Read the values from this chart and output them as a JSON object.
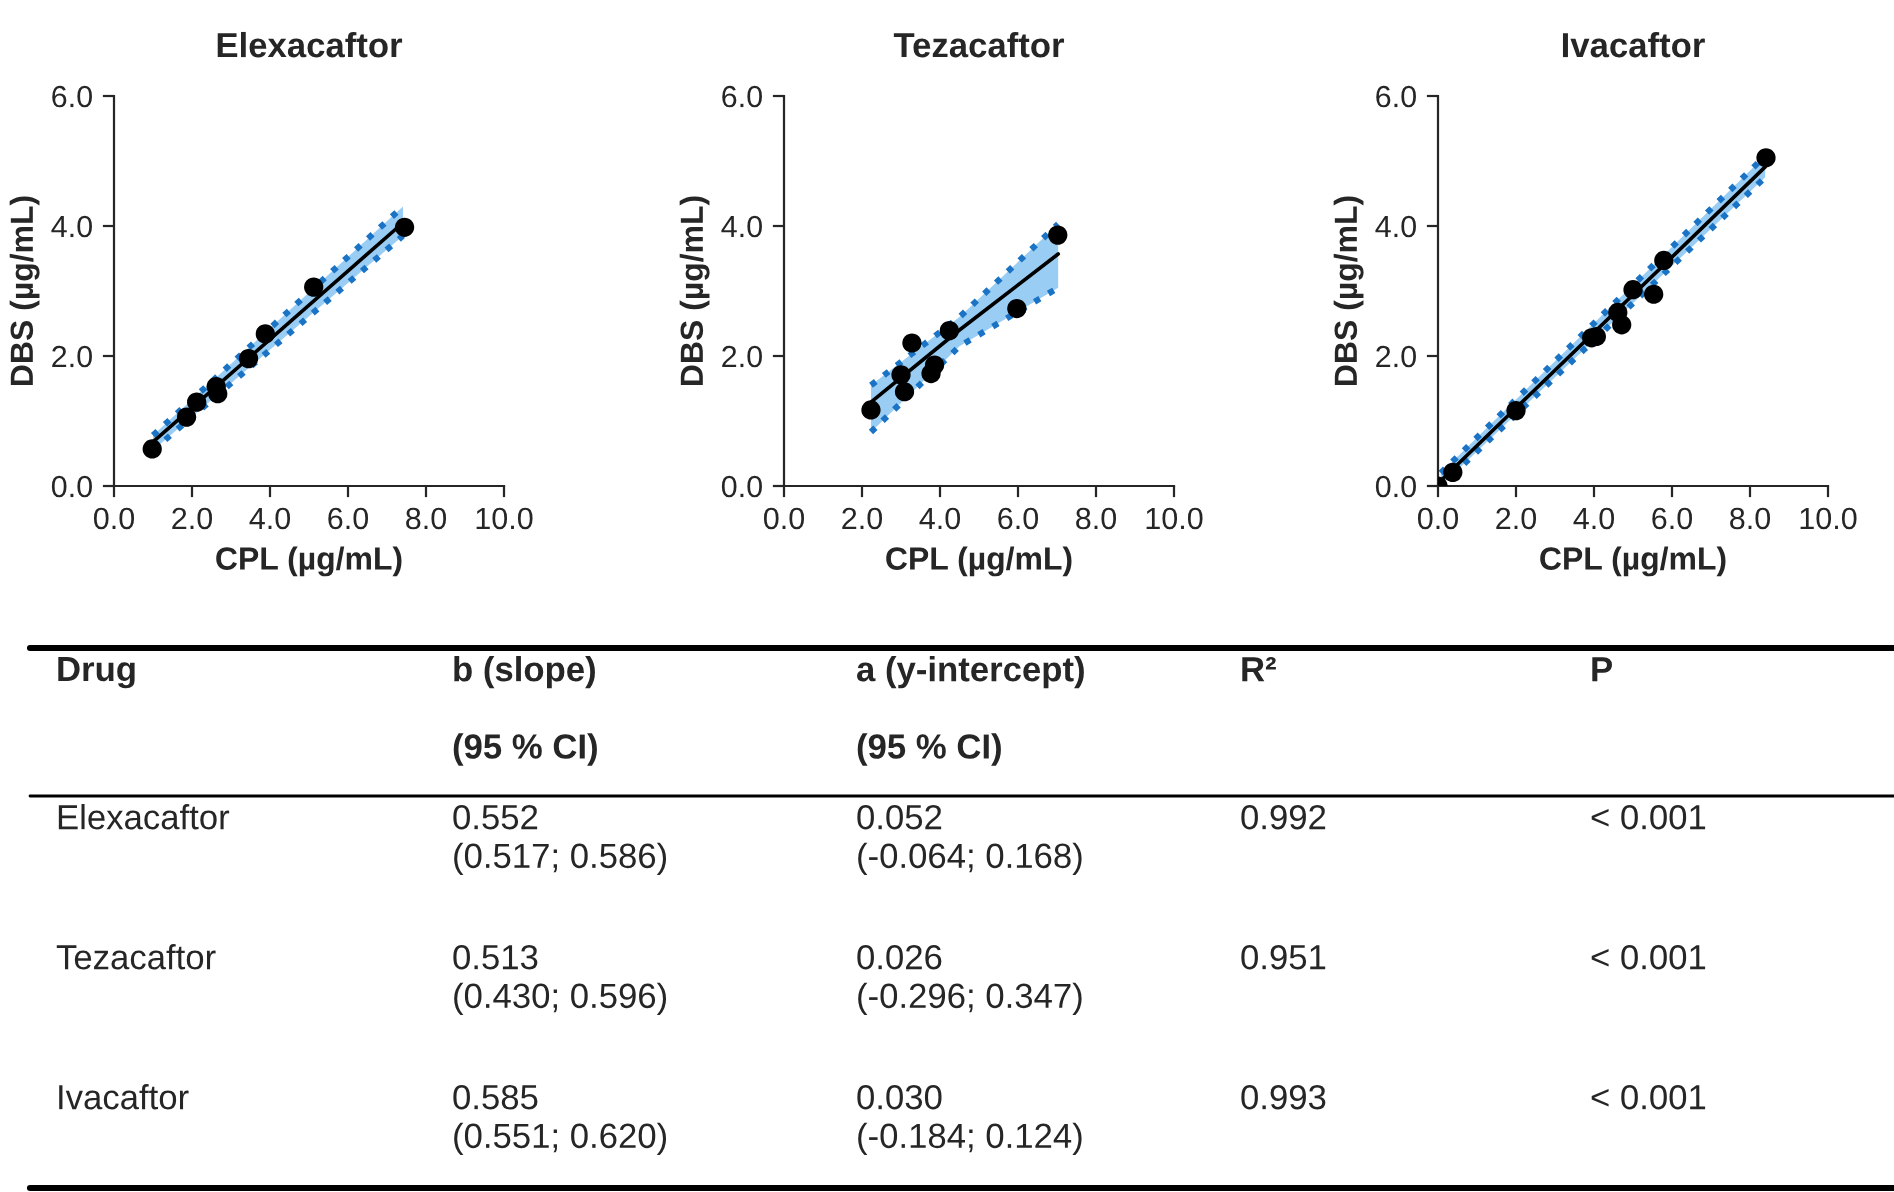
{
  "chart_data": [
    {
      "type": "scatter",
      "title": "Elexacaftor",
      "xlabel": "CPL (µg/mL)",
      "ylabel": "DBS (µg/mL)",
      "xlim": [
        0,
        10
      ],
      "xticks": [
        {
          "value": 0,
          "label": "0.0"
        },
        {
          "value": 2,
          "label": "2.0"
        },
        {
          "value": 4,
          "label": "4.0"
        },
        {
          "value": 6,
          "label": "6.0"
        },
        {
          "value": 8,
          "label": "8.0"
        },
        {
          "value": 10,
          "label": "10.0"
        }
      ],
      "ylim": [
        0,
        6
      ],
      "yticks": [
        {
          "value": 0,
          "label": "0.0"
        },
        {
          "value": 2,
          "label": "2.0"
        },
        {
          "value": 4,
          "label": "4.0"
        },
        {
          "value": 6,
          "label": "6.0"
        }
      ],
      "grid": false,
      "legend": false,
      "series": [
        {
          "type": "scatter",
          "marker": "circle",
          "color": "#000000",
          "x": [
            0.98,
            1.86,
            2.12,
            2.62,
            2.66,
            3.45,
            3.88,
            5.12,
            7.45
          ],
          "values": [
            0.57,
            1.06,
            1.29,
            1.53,
            1.42,
            1.96,
            2.34,
            3.06,
            3.98
          ]
        },
        {
          "type": "line",
          "marker": "none",
          "line_style": "solid",
          "color": "#000000",
          "x": [
            1.0,
            7.41
          ],
          "values": [
            0.68,
            4.05
          ],
          "lower": [
            0.55,
            3.85
          ],
          "upper": [
            0.78,
            4.3
          ]
        },
        {
          "type": "line",
          "marker": "none",
          "line_style": "dotted",
          "color": "#1a73c4",
          "x": [
            1.0,
            7.41
          ],
          "values": [
            0.55,
            3.85
          ]
        },
        {
          "type": "line",
          "marker": "none",
          "line_style": "dotted",
          "color": "#1a73c4",
          "x": [
            1.0,
            7.41
          ],
          "values": [
            0.78,
            4.3
          ]
        }
      ]
    },
    {
      "type": "scatter",
      "title": "Tezacaftor",
      "xlabel": "CPL (µg/mL)",
      "ylabel": "DBS (µg/mL)",
      "xlim": [
        0,
        10
      ],
      "xticks": [
        {
          "value": 0,
          "label": "0.0"
        },
        {
          "value": 2,
          "label": "2.0"
        },
        {
          "value": 4,
          "label": "4.0"
        },
        {
          "value": 6,
          "label": "6.0"
        },
        {
          "value": 8,
          "label": "8.0"
        },
        {
          "value": 10,
          "label": "10.0"
        }
      ],
      "ylim": [
        0,
        6
      ],
      "yticks": [
        {
          "value": 0,
          "label": "0.0"
        },
        {
          "value": 2,
          "label": "2.0"
        },
        {
          "value": 4,
          "label": "4.0"
        },
        {
          "value": 6,
          "label": "6.0"
        }
      ],
      "grid": false,
      "legend": false,
      "series": [
        {
          "type": "scatter",
          "marker": "circle",
          "color": "#000000",
          "x": [
            2.23,
            3.0,
            3.09,
            3.28,
            3.77,
            3.86,
            4.24,
            5.97,
            7.02
          ],
          "values": [
            1.17,
            1.71,
            1.45,
            2.2,
            1.73,
            1.86,
            2.39,
            2.73,
            3.86
          ]
        },
        {
          "type": "line",
          "marker": "none",
          "line_style": "solid",
          "color": "#000000",
          "x": [
            2.23,
            4.5,
            7.03
          ],
          "values": [
            1.29,
            2.4,
            3.57
          ],
          "lower": [
            0.83,
            2.15,
            3.05
          ],
          "upper": [
            1.55,
            2.6,
            4.03
          ]
        },
        {
          "type": "line",
          "marker": "none",
          "line_style": "dotted",
          "color": "#1a73c4",
          "x": [
            2.23,
            4.5,
            7.03
          ],
          "values": [
            0.83,
            2.15,
            3.05
          ]
        },
        {
          "type": "line",
          "marker": "none",
          "line_style": "dotted",
          "color": "#1a73c4",
          "x": [
            2.23,
            4.5,
            7.03
          ],
          "values": [
            1.55,
            2.6,
            4.03
          ]
        }
      ]
    },
    {
      "type": "scatter",
      "title": "Ivacaftor",
      "xlabel": "CPL (µg/mL)",
      "ylabel": "DBS (µg/mL)",
      "xlim": [
        0,
        10
      ],
      "xticks": [
        {
          "value": 0,
          "label": "0.0"
        },
        {
          "value": 2,
          "label": "2.0"
        },
        {
          "value": 4,
          "label": "4.0"
        },
        {
          "value": 6,
          "label": "6.0"
        },
        {
          "value": 8,
          "label": "8.0"
        },
        {
          "value": 10,
          "label": "10.0"
        }
      ],
      "ylim": [
        0,
        6
      ],
      "yticks": [
        {
          "value": 0,
          "label": "0.0"
        },
        {
          "value": 2,
          "label": "2.0"
        },
        {
          "value": 4,
          "label": "4.0"
        },
        {
          "value": 6,
          "label": "6.0"
        }
      ],
      "grid": false,
      "legend": false,
      "series": [
        {
          "type": "scatter",
          "marker": "circle",
          "color": "#000000",
          "x": [
            0,
            0.38,
            2.0,
            3.94,
            4.06,
            4.61,
            4.71,
            5.0,
            5.53,
            5.79,
            8.41
          ],
          "values": [
            0,
            0.21,
            1.16,
            2.28,
            2.3,
            2.67,
            2.48,
            3.02,
            2.95,
            3.47,
            5.05
          ]
        },
        {
          "type": "line",
          "marker": "none",
          "line_style": "solid",
          "color": "#000000",
          "x": [
            0.07,
            8.39
          ],
          "values": [
            0.08,
            4.91
          ],
          "lower": [
            0,
            4.75
          ],
          "upper": [
            0.2,
            5.08
          ]
        },
        {
          "type": "line",
          "marker": "none",
          "line_style": "dotted",
          "color": "#1a73c4",
          "x": [
            0.07,
            8.39
          ],
          "values": [
            0,
            4.75
          ]
        },
        {
          "type": "line",
          "marker": "none",
          "line_style": "dotted",
          "color": "#1a73c4",
          "x": [
            0.07,
            8.39
          ],
          "values": [
            0.2,
            5.08
          ]
        }
      ]
    },
    {
      "type": "other",
      "annotations": [
        "Drug",
        "b (slope)\n\n(95 % CI)",
        "a (y-intercept)\n\n(95 % CI)",
        "R²",
        "P",
        "Elexacaftor",
        "0.552\n(0.517; 0.586)",
        "0.052\n(-0.064; 0.168)",
        "0.992",
        "< 0.001",
        "Tezacaftor",
        "0.513\n(0.430; 0.596)",
        "0.026\n(-0.296; 0.347)",
        "0.951",
        "< 0.001",
        "Ivacaftor",
        "0.585\n(0.551; 0.620)",
        "0.030\n(-0.184; 0.124)",
        "0.993",
        "< 0.001"
      ]
    }
  ]
}
